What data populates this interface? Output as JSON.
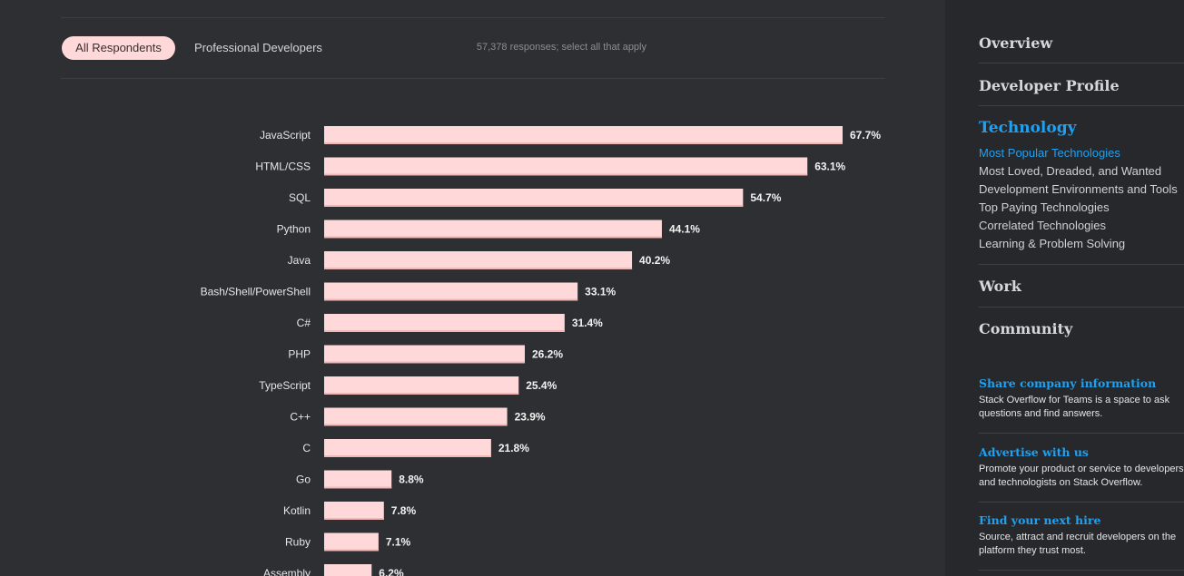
{
  "tabs": {
    "all_respondents": "All Respondents",
    "professional": "Professional Developers"
  },
  "responses_note": "57,378 responses; select all that apply",
  "colors": {
    "bar": "#ffd9d9",
    "accent": "#1ea1f2",
    "background": "#2d2f32",
    "sidebar": "#26282b"
  },
  "chart_data": {
    "type": "bar",
    "orientation": "horizontal",
    "title": "",
    "xlabel": "",
    "ylabel": "",
    "xlim": [
      0,
      67.7
    ],
    "categories": [
      "JavaScript",
      "HTML/CSS",
      "SQL",
      "Python",
      "Java",
      "Bash/Shell/PowerShell",
      "C#",
      "PHP",
      "TypeScript",
      "C++",
      "C",
      "Go",
      "Kotlin",
      "Ruby",
      "Assembly"
    ],
    "values": [
      67.7,
      63.1,
      54.7,
      44.1,
      40.2,
      33.1,
      31.4,
      26.2,
      25.4,
      23.9,
      21.8,
      8.8,
      7.8,
      7.1,
      6.2
    ],
    "value_labels": [
      "67.7%",
      "63.1%",
      "54.7%",
      "44.1%",
      "40.2%",
      "33.1%",
      "31.4%",
      "26.2%",
      "25.4%",
      "23.9%",
      "21.8%",
      "8.8%",
      "7.8%",
      "7.1%",
      "6.2%"
    ]
  },
  "sidebar": {
    "sections": {
      "overview": "Overview",
      "developer_profile": "Developer Profile",
      "technology": "Technology",
      "work": "Work",
      "community": "Community"
    },
    "technology_items": [
      "Most Popular Technologies",
      "Most Loved, Dreaded, and Wanted",
      "Development Environments and Tools",
      "Top Paying Technologies",
      "Correlated Technologies",
      "Learning & Problem Solving"
    ],
    "promos": [
      {
        "title": "Share company information",
        "text": "Stack Overflow for Teams is a space to ask questions and find answers."
      },
      {
        "title": "Advertise with us",
        "text": "Promote your product or service to developers and technologists on Stack Overflow."
      },
      {
        "title": "Find your next hire",
        "text": "Source, attract and recruit developers on the platform they trust most."
      }
    ]
  }
}
